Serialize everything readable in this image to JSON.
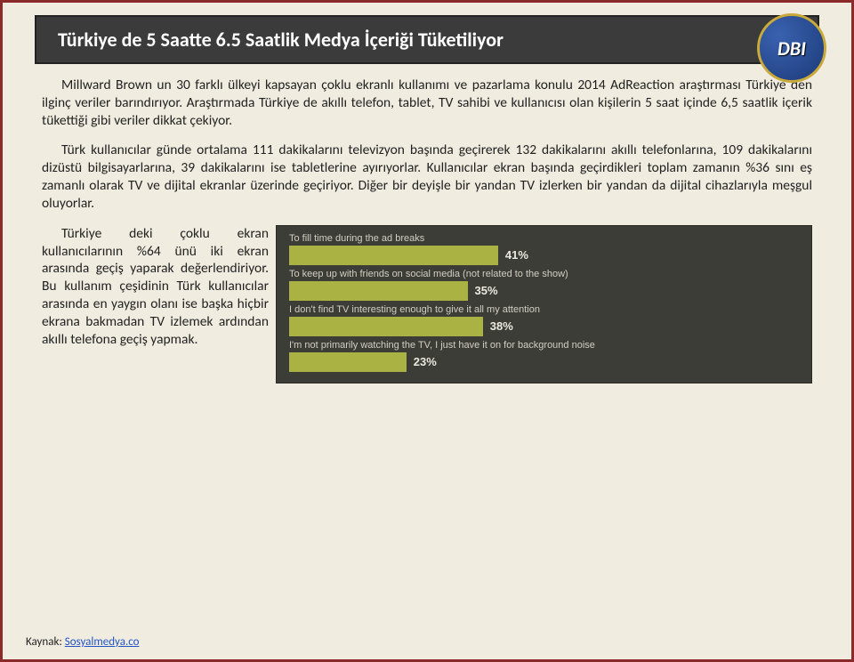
{
  "header": {
    "title": "Türkiye de 5 Saatte 6.5 Saatlik Medya İçeriği Tüketiliyor"
  },
  "logo": {
    "text": "DBI"
  },
  "body": {
    "p1": "Millward Brown un 30 farklı ülkeyi kapsayan çoklu ekranlı kullanımı ve pazarlama konulu 2014 AdReaction araştırması Türkiye den ilginç veriler barındırıyor. Araştırmada Türkiye de akıllı telefon, tablet, TV sahibi ve kullanıcısı olan kişilerin 5 saat içinde 6,5 saatlik içerik tükettiği gibi veriler dikkat çekiyor.",
    "p2": "Türk kullanıcılar günde ortalama 111 dakikalarını televizyon başında geçirerek 132 dakikalarını akıllı telefonlarına, 109 dakikalarını dizüstü bilgisayarlarına, 39 dakikalarını ise tabletlerine ayırıyorlar. Kullanıcılar ekran başında geçirdikleri toplam zamanın %36 sını eş zamanlı olarak TV ve dijital ekranlar üzerinde geçiriyor. Diğer bir deyişle bir yandan TV izlerken bir yandan da dijital cihazlarıyla meşgul oluyorlar.",
    "p3": "Türkiye deki çoklu ekran kullanıcılarının %64 ünü iki ekran arasında geçiş yaparak değerlendiriyor. Bu kullanım çeşidinin Türk kullanıcılar arasında en yaygın olanı ise başka hiçbir ekrana bakmadan TV izlemek ardından akıllı telefona geçiş yapmak."
  },
  "chart": {
    "type": "bar",
    "background_color": "#3d3d38",
    "bar_color": "#a9b243",
    "label_color": "#cfcfc2",
    "value_color": "#e9e9df",
    "label_fontsize": 11,
    "value_fontsize": 13,
    "xmax": 100,
    "rows": [
      {
        "label": "To fill time during the ad breaks",
        "value": 41,
        "display": "41%"
      },
      {
        "label": "To keep up with friends on social media (not related to the show)",
        "value": 35,
        "display": "35%"
      },
      {
        "label": "I don't find TV interesting enough to give it all my attention",
        "value": 38,
        "display": "38%"
      },
      {
        "label": "I'm not primarily watching the TV, I just have it on for background noise",
        "value": 23,
        "display": "23%"
      }
    ]
  },
  "source": {
    "prefix": "Kaynak: ",
    "link_text": "Sosyalmedya.co"
  }
}
